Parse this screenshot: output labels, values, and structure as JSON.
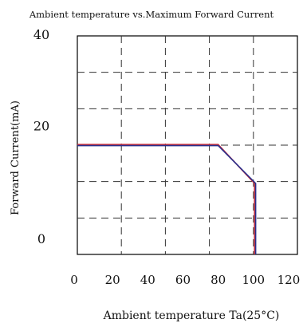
{
  "chart_data": {
    "type": "line",
    "title": "Ambient temperature vs.Maximum Forward Current",
    "xlabel": "Ambient temperature Ta(25°C)",
    "ylabel": "Forward Current(mA)",
    "xlim": [
      0,
      125
    ],
    "ylim": [
      0,
      40
    ],
    "x_ticks": [
      "0",
      "20",
      "40",
      "60",
      "80",
      "100",
      "120"
    ],
    "y_ticks": [
      "40",
      "20",
      "0"
    ],
    "grid": true,
    "grid_style": "dashed",
    "series": [
      {
        "color": "#d0313a",
        "x": [
          0,
          80,
          101,
          101
        ],
        "y": [
          20,
          20,
          13,
          -4
        ]
      },
      {
        "color": "#2a2f8c",
        "x": [
          0,
          80,
          101,
          101
        ],
        "y": [
          20,
          20,
          13,
          -4
        ]
      }
    ]
  }
}
